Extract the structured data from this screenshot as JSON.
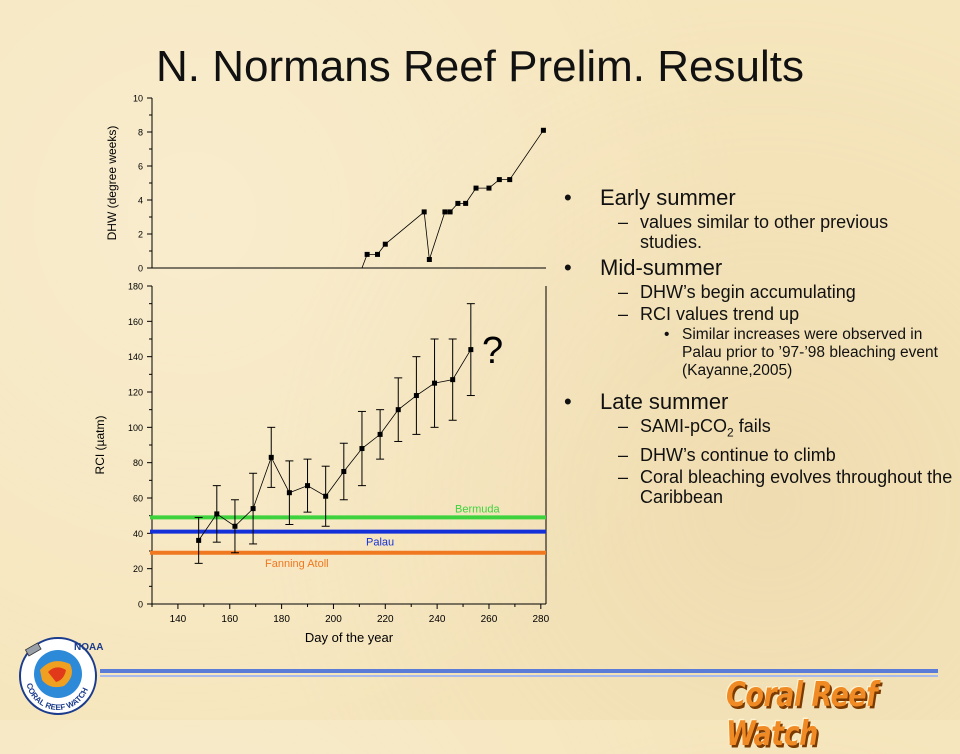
{
  "title": "N. Normans Reef Prelim. Results",
  "chart_data": [
    {
      "type": "line",
      "ylabel": "DHW (degree weeks)",
      "xlabel": "",
      "xlim": [
        130,
        282
      ],
      "ylim": [
        0,
        10
      ],
      "yticks": [
        "0",
        "2",
        "4",
        "6",
        "8",
        "10"
      ],
      "x": [
        213,
        217,
        220,
        235,
        237,
        243,
        245,
        248,
        251,
        255,
        260,
        264,
        268,
        281
      ],
      "y": [
        0.8,
        0.8,
        1.4,
        3.3,
        0.5,
        3.3,
        3.3,
        3.8,
        3.8,
        4.7,
        4.7,
        5.2,
        5.2,
        8.1
      ],
      "marker": "square",
      "grid": false
    },
    {
      "type": "line",
      "ylabel": "RCI (µatm)",
      "xlabel": "Day of the year",
      "xlim": [
        130,
        282
      ],
      "ylim": [
        0,
        180
      ],
      "xticks": [
        "140",
        "160",
        "180",
        "200",
        "220",
        "240",
        "260",
        "280"
      ],
      "yticks": [
        "0",
        "20",
        "40",
        "60",
        "80",
        "100",
        "120",
        "140",
        "160",
        "180"
      ],
      "x": [
        148,
        155,
        162,
        169,
        176,
        183,
        190,
        197,
        204,
        211,
        218,
        225,
        232,
        239,
        246,
        253
      ],
      "y": [
        36,
        51,
        44,
        54,
        83,
        63,
        67,
        61,
        75,
        88,
        96,
        110,
        118,
        125,
        127,
        144
      ],
      "error": [
        13,
        16,
        15,
        20,
        17,
        18,
        15,
        17,
        16,
        21,
        14,
        18,
        22,
        25,
        23,
        26
      ],
      "marker": "square",
      "annotation": "?",
      "reference_lines": [
        {
          "name": "Bermuda",
          "y": 49,
          "color": "#3ed33e"
        },
        {
          "name": "Palau",
          "y": 41,
          "color": "#1430d8"
        },
        {
          "name": "Fanning Atoll",
          "y": 29,
          "color": "#f07820"
        }
      ],
      "grid": false
    }
  ],
  "bullets": {
    "early": {
      "label": "Early summer",
      "sub1": "values similar to other previous studies."
    },
    "mid": {
      "label": "Mid-summer",
      "sub1": "DHW’s begin accumulating",
      "sub2": "RCI values trend up",
      "sub2_detail": "Similar increases were observed in Palau prior to ’97-’98 bleaching event (Kayanne,2005)"
    },
    "late": {
      "label": "Late summer",
      "sub1_pre": "SAMI-pCO",
      "sub1_sub": "2",
      "sub1_post": " fails",
      "sub2": "DHW’s continue to climb",
      "sub3": "Coral bleaching evolves throughout the Caribbean"
    }
  },
  "logo": {
    "top_text": "NOAA",
    "ring_text": "CORAL REEF WATCH"
  },
  "brand": "Coral Reef Watch"
}
